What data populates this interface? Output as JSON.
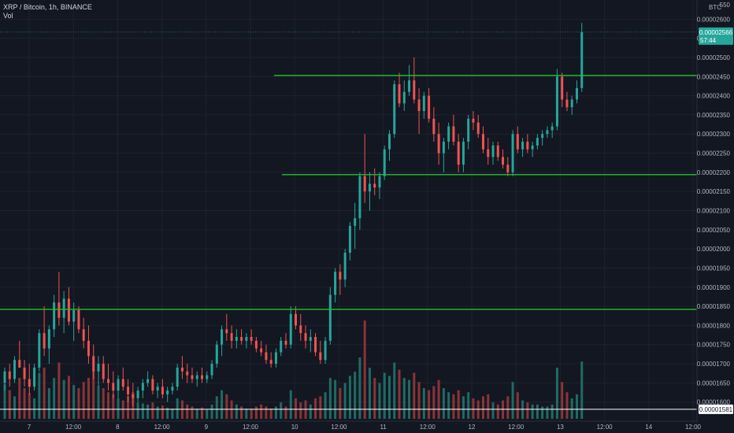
{
  "window": {
    "symbol_title": "XRP / Bitcoin, 1h, BINANCE",
    "indicator_title": "Vol",
    "currency_label": "BTC"
  },
  "colors": {
    "background": "#131722",
    "grid": "#1e222d",
    "up": "#26a69a",
    "down": "#ef5350",
    "vol_up": "#1f6b64",
    "vol_down": "#8a3437",
    "level_line": "#21c22c",
    "price_badge": "#26a69a",
    "axis_text": "#b2b5be"
  },
  "price_axis": {
    "tick_labels": [
      "0.00002600",
      "0.00002550",
      "0.00002500",
      "0.00002450",
      "0.00002400",
      "0.00002350",
      "0.00002300",
      "0.00002250",
      "0.00002200",
      "0.00002150",
      "0.00002100",
      "0.00002050",
      "0.00002000",
      "0.00001950",
      "0.00001900",
      "0.00001850",
      "0.00001800",
      "0.00001750",
      "0.00001700",
      "0.00001650",
      "0.00001600"
    ],
    "top_partial_label": "550",
    "current_price": "0.00002566",
    "countdown": "57:44",
    "bottom_badge": "0.00001581"
  },
  "time_axis": {
    "tick_labels": [
      "7",
      "12:00",
      "8",
      "12:00",
      "9",
      "12:00",
      "10",
      "12:00",
      "11",
      "12:00",
      "12",
      "12:00",
      "13",
      "12:00",
      "14",
      "12:00"
    ]
  },
  "chart_data": {
    "type": "candlestick",
    "title": "XRP / Bitcoin, 1h, BINANCE",
    "x_range_note": "hourly candles, day 7 to day 13",
    "ylim": [
      1.55e-05,
      2.65e-05
    ],
    "horizontal_levels": [
      {
        "value": "0.00002453",
        "start_day_offset": 3.67
      },
      {
        "value": "0.00002194",
        "start_day_offset": 3.75
      },
      {
        "value": "0.00001842",
        "start_day_offset": 0
      }
    ],
    "candles": [
      [
        1.65e-05,
        1.69e-05,
        1.63e-05,
        1.68e-05,
        0.34
      ],
      [
        1.68e-05,
        1.7e-05,
        1.64e-05,
        1.66e-05,
        0.28
      ],
      [
        1.66e-05,
        1.72e-05,
        1.65e-05,
        1.71e-05,
        0.22
      ],
      [
        1.71e-05,
        1.76e-05,
        1.69e-05,
        1.69e-05,
        0.4
      ],
      [
        1.69e-05,
        1.71e-05,
        1.64e-05,
        1.66e-05,
        0.3
      ],
      [
        1.66e-05,
        1.7e-05,
        1.62e-05,
        1.64e-05,
        0.25
      ],
      [
        1.64e-05,
        1.7e-05,
        1.63e-05,
        1.69e-05,
        0.2
      ],
      [
        1.69e-05,
        1.79e-05,
        1.68e-05,
        1.78e-05,
        0.45
      ],
      [
        1.78e-05,
        1.85e-05,
        1.72e-05,
        1.74e-05,
        0.5
      ],
      [
        1.74e-05,
        1.8e-05,
        1.7e-05,
        1.79e-05,
        0.3
      ],
      [
        1.79e-05,
        1.88e-05,
        1.77e-05,
        1.86e-05,
        0.4
      ],
      [
        1.86e-05,
        1.94e-05,
        1.8e-05,
        1.82e-05,
        0.55
      ],
      [
        1.82e-05,
        1.89e-05,
        1.78e-05,
        1.87e-05,
        0.38
      ],
      [
        1.87e-05,
        1.9e-05,
        1.8e-05,
        1.81e-05,
        0.42
      ],
      [
        1.81e-05,
        1.86e-05,
        1.76e-05,
        1.84e-05,
        0.33
      ],
      [
        1.84e-05,
        1.85e-05,
        1.78e-05,
        1.79e-05,
        0.3
      ],
      [
        1.79e-05,
        1.82e-05,
        1.74e-05,
        1.76e-05,
        0.36
      ],
      [
        1.76e-05,
        1.8e-05,
        1.7e-05,
        1.72e-05,
        0.4
      ],
      [
        1.72e-05,
        1.75e-05,
        1.66e-05,
        1.68e-05,
        0.48
      ],
      [
        1.68e-05,
        1.72e-05,
        1.64e-05,
        1.7e-05,
        0.32
      ],
      [
        1.7e-05,
        1.72e-05,
        1.65e-05,
        1.66e-05,
        0.3
      ],
      [
        1.66e-05,
        1.7e-05,
        1.63e-05,
        1.65e-05,
        0.26
      ],
      [
        1.65e-05,
        1.68e-05,
        1.61e-05,
        1.63e-05,
        0.24
      ],
      [
        1.63e-05,
        1.67e-05,
        1.61e-05,
        1.66e-05,
        0.2
      ],
      [
        1.66e-05,
        1.69e-05,
        1.63e-05,
        1.64e-05,
        0.18
      ],
      [
        1.64e-05,
        1.66e-05,
        1.6e-05,
        1.62e-05,
        0.22
      ],
      [
        1.62e-05,
        1.65e-05,
        1.59e-05,
        1.61e-05,
        0.26
      ],
      [
        1.61e-05,
        1.64e-05,
        1.6e-05,
        1.63e-05,
        0.16
      ],
      [
        1.63e-05,
        1.66e-05,
        1.61e-05,
        1.65e-05,
        0.15
      ],
      [
        1.65e-05,
        1.68e-05,
        1.64e-05,
        1.66e-05,
        0.14
      ],
      [
        1.66e-05,
        1.67e-05,
        1.62e-05,
        1.63e-05,
        0.16
      ],
      [
        1.63e-05,
        1.65e-05,
        1.61e-05,
        1.64e-05,
        0.12
      ],
      [
        1.64e-05,
        1.66e-05,
        1.61e-05,
        1.62e-05,
        0.13
      ],
      [
        1.62e-05,
        1.64e-05,
        1.6e-05,
        1.63e-05,
        0.11
      ],
      [
        1.63e-05,
        1.65e-05,
        1.62e-05,
        1.64e-05,
        0.1
      ],
      [
        1.64e-05,
        1.7e-05,
        1.63e-05,
        1.69e-05,
        0.2
      ],
      [
        1.69e-05,
        1.72e-05,
        1.66e-05,
        1.68e-05,
        0.18
      ],
      [
        1.68e-05,
        1.7e-05,
        1.65e-05,
        1.67e-05,
        0.14
      ],
      [
        1.67e-05,
        1.69e-05,
        1.65e-05,
        1.66e-05,
        0.12
      ],
      [
        1.66e-05,
        1.68e-05,
        1.64e-05,
        1.67e-05,
        0.1
      ],
      [
        1.67e-05,
        1.69e-05,
        1.65e-05,
        1.66e-05,
        0.11
      ],
      [
        1.66e-05,
        1.68e-05,
        1.65e-05,
        1.67e-05,
        0.09
      ],
      [
        1.67e-05,
        1.71e-05,
        1.66e-05,
        1.7e-05,
        0.14
      ],
      [
        1.7e-05,
        1.76e-05,
        1.69e-05,
        1.75e-05,
        0.22
      ],
      [
        1.75e-05,
        1.8e-05,
        1.72e-05,
        1.79e-05,
        0.28
      ],
      [
        1.79e-05,
        1.83e-05,
        1.76e-05,
        1.78e-05,
        0.24
      ],
      [
        1.78e-05,
        1.8e-05,
        1.74e-05,
        1.76e-05,
        0.18
      ],
      [
        1.76e-05,
        1.79e-05,
        1.74e-05,
        1.77e-05,
        0.14
      ],
      [
        1.77e-05,
        1.79e-05,
        1.75e-05,
        1.76e-05,
        0.12
      ],
      [
        1.76e-05,
        1.78e-05,
        1.74e-05,
        1.77e-05,
        0.1
      ],
      [
        1.77e-05,
        1.79e-05,
        1.75e-05,
        1.76e-05,
        0.1
      ],
      [
        1.76e-05,
        1.77e-05,
        1.73e-05,
        1.74e-05,
        0.12
      ],
      [
        1.74e-05,
        1.76e-05,
        1.72e-05,
        1.73e-05,
        0.14
      ],
      [
        1.73e-05,
        1.75e-05,
        1.7e-05,
        1.71e-05,
        0.12
      ],
      [
        1.71e-05,
        1.73e-05,
        1.69e-05,
        1.7e-05,
        0.1
      ],
      [
        1.7e-05,
        1.74e-05,
        1.69e-05,
        1.73e-05,
        0.12
      ],
      [
        1.73e-05,
        1.77e-05,
        1.72e-05,
        1.76e-05,
        0.16
      ],
      [
        1.76e-05,
        1.78e-05,
        1.74e-05,
        1.75e-05,
        0.12
      ],
      [
        1.75e-05,
        1.85e-05,
        1.74e-05,
        1.83e-05,
        0.28
      ],
      [
        1.83e-05,
        1.85e-05,
        1.79e-05,
        1.8e-05,
        0.2
      ],
      [
        1.8e-05,
        1.83e-05,
        1.76e-05,
        1.78e-05,
        0.16
      ],
      [
        1.78e-05,
        1.8e-05,
        1.74e-05,
        1.76e-05,
        0.18
      ],
      [
        1.76e-05,
        1.79e-05,
        1.73e-05,
        1.77e-05,
        0.14
      ],
      [
        1.77e-05,
        1.78e-05,
        1.72e-05,
        1.73e-05,
        0.2
      ],
      [
        1.73e-05,
        1.76e-05,
        1.7e-05,
        1.71e-05,
        0.22
      ],
      [
        1.71e-05,
        1.77e-05,
        1.7e-05,
        1.76e-05,
        0.26
      ],
      [
        1.76e-05,
        1.9e-05,
        1.75e-05,
        1.88e-05,
        0.4
      ],
      [
        1.88e-05,
        1.95e-05,
        1.86e-05,
        1.94e-05,
        0.38
      ],
      [
        1.94e-05,
        1.96e-05,
        1.88e-05,
        1.92e-05,
        0.3
      ],
      [
        1.92e-05,
        2e-05,
        1.9e-05,
        1.99e-05,
        0.35
      ],
      [
        1.99e-05,
        2.07e-05,
        1.97e-05,
        2.06e-05,
        0.42
      ],
      [
        2.06e-05,
        2.12e-05,
        2e-05,
        2.08e-05,
        0.46
      ],
      [
        2.08e-05,
        2.2e-05,
        2.05e-05,
        2.19e-05,
        0.6
      ],
      [
        2.19e-05,
        2.3e-05,
        2.12e-05,
        2.15e-05,
        0.96
      ],
      [
        2.15e-05,
        2.2e-05,
        2.1e-05,
        2.17e-05,
        0.5
      ],
      [
        2.17e-05,
        2.21e-05,
        2.14e-05,
        2.16e-05,
        0.4
      ],
      [
        2.16e-05,
        2.2e-05,
        2.13e-05,
        2.19e-05,
        0.35
      ],
      [
        2.19e-05,
        2.27e-05,
        2.18e-05,
        2.26e-05,
        0.45
      ],
      [
        2.26e-05,
        2.31e-05,
        2.23e-05,
        2.3e-05,
        0.42
      ],
      [
        2.3e-05,
        2.44e-05,
        2.29e-05,
        2.43e-05,
        0.55
      ],
      [
        2.43e-05,
        2.46e-05,
        2.37e-05,
        2.38e-05,
        0.48
      ],
      [
        2.38e-05,
        2.44e-05,
        2.36e-05,
        2.41e-05,
        0.4
      ],
      [
        2.41e-05,
        2.48e-05,
        2.4e-05,
        2.44e-05,
        0.38
      ],
      [
        2.44e-05,
        2.5e-05,
        2.38e-05,
        2.39e-05,
        0.45
      ],
      [
        2.39e-05,
        2.42e-05,
        2.3e-05,
        2.36e-05,
        0.36
      ],
      [
        2.36e-05,
        2.41e-05,
        2.34e-05,
        2.4e-05,
        0.3
      ],
      [
        2.4e-05,
        2.42e-05,
        2.33e-05,
        2.34e-05,
        0.28
      ],
      [
        2.34e-05,
        2.37e-05,
        2.28e-05,
        2.3e-05,
        0.32
      ],
      [
        2.3e-05,
        2.33e-05,
        2.22e-05,
        2.25e-05,
        0.38
      ],
      [
        2.25e-05,
        2.29e-05,
        2.2e-05,
        2.28e-05,
        0.3
      ],
      [
        2.28e-05,
        2.33e-05,
        2.26e-05,
        2.32e-05,
        0.26
      ],
      [
        2.32e-05,
        2.35e-05,
        2.27e-05,
        2.28e-05,
        0.24
      ],
      [
        2.28e-05,
        2.3e-05,
        2.2e-05,
        2.22e-05,
        0.28
      ],
      [
        2.22e-05,
        2.29e-05,
        2.2e-05,
        2.28e-05,
        0.22
      ],
      [
        2.28e-05,
        2.35e-05,
        2.26e-05,
        2.34e-05,
        0.26
      ],
      [
        2.34e-05,
        2.36e-05,
        2.31e-05,
        2.33e-05,
        0.2
      ],
      [
        2.33e-05,
        2.35e-05,
        2.29e-05,
        2.3e-05,
        0.18
      ],
      [
        2.3e-05,
        2.32e-05,
        2.25e-05,
        2.26e-05,
        0.22
      ],
      [
        2.26e-05,
        2.29e-05,
        2.22e-05,
        2.24e-05,
        0.24
      ],
      [
        2.24e-05,
        2.28e-05,
        2.22e-05,
        2.27e-05,
        0.16
      ],
      [
        2.27e-05,
        2.28e-05,
        2.23e-05,
        2.24e-05,
        0.14
      ],
      [
        2.24e-05,
        2.26e-05,
        2.21e-05,
        2.22e-05,
        0.18
      ],
      [
        2.22e-05,
        2.24e-05,
        2.19e-05,
        2.2e-05,
        0.22
      ],
      [
        2.2e-05,
        2.31e-05,
        2.19e-05,
        2.3e-05,
        0.36
      ],
      [
        2.3e-05,
        2.32e-05,
        2.25e-05,
        2.26e-05,
        0.26
      ],
      [
        2.26e-05,
        2.29e-05,
        2.24e-05,
        2.28e-05,
        0.18
      ],
      [
        2.28e-05,
        2.3e-05,
        2.25e-05,
        2.26e-05,
        0.16
      ],
      [
        2.26e-05,
        2.28e-05,
        2.24e-05,
        2.27e-05,
        0.14
      ],
      [
        2.27e-05,
        2.3e-05,
        2.26e-05,
        2.29e-05,
        0.14
      ],
      [
        2.29e-05,
        2.31e-05,
        2.27e-05,
        2.3e-05,
        0.12
      ],
      [
        2.3e-05,
        2.32e-05,
        2.29e-05,
        2.31e-05,
        0.12
      ],
      [
        2.31e-05,
        2.33e-05,
        2.29e-05,
        2.32e-05,
        0.14
      ],
      [
        2.32e-05,
        2.47e-05,
        2.31e-05,
        2.45e-05,
        0.5
      ],
      [
        2.45e-05,
        2.46e-05,
        2.37e-05,
        2.39e-05,
        0.36
      ],
      [
        2.39e-05,
        2.41e-05,
        2.36e-05,
        2.37e-05,
        0.26
      ],
      [
        2.37e-05,
        2.4e-05,
        2.35e-05,
        2.39e-05,
        0.2
      ],
      [
        2.39e-05,
        2.44e-05,
        2.38e-05,
        2.42e-05,
        0.24
      ],
      [
        2.42e-05,
        2.59e-05,
        2.41e-05,
        2.566e-05,
        0.56
      ]
    ]
  }
}
